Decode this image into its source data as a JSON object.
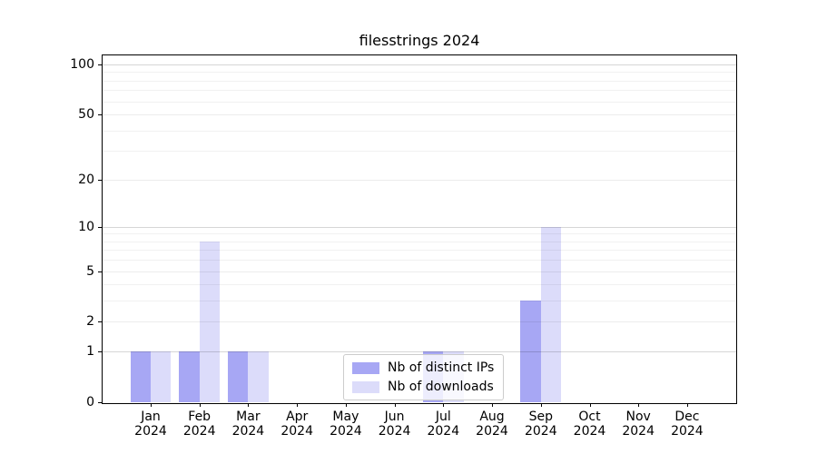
{
  "chart_data": {
    "type": "bar",
    "title": "filesstrings 2024",
    "categories": [
      "Jan",
      "Feb",
      "Mar",
      "Apr",
      "May",
      "Jun",
      "Jul",
      "Aug",
      "Sep",
      "Oct",
      "Nov",
      "Dec"
    ],
    "x_year_label": "2024",
    "series": [
      {
        "name": "Nb of distinct IPs",
        "color": "#a7a7f4",
        "values": [
          1,
          1,
          1,
          0,
          0,
          0,
          1,
          0,
          3,
          0,
          0,
          0
        ]
      },
      {
        "name": "Nb of downloads",
        "color": "#dcdcfa",
        "values": [
          1,
          8,
          1,
          0,
          0,
          0,
          1,
          0,
          10,
          0,
          0,
          0
        ]
      }
    ],
    "y_ticks": [
      0,
      1,
      2,
      5,
      10,
      20,
      50,
      100
    ],
    "y_scale": "log1p",
    "ylim": [
      0,
      115
    ],
    "grid": true,
    "gridlines_decade": [
      1,
      10,
      100
    ],
    "gridlines_mid": [
      2,
      5,
      20,
      50
    ],
    "gridlines_minor": [
      3,
      4,
      6,
      7,
      8,
      9,
      30,
      40,
      60,
      70,
      80,
      90
    ],
    "legend_position": "inside-bottom-center"
  }
}
